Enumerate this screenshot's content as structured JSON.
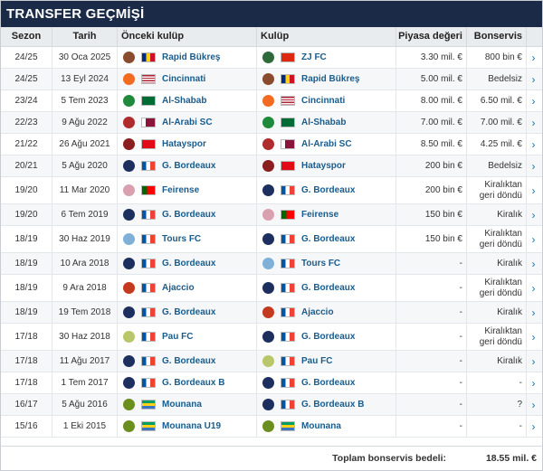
{
  "title": "TRANSFER GEÇMİŞİ",
  "columns": {
    "season": "Sezon",
    "date": "Tarih",
    "from": "Önceki kulüp",
    "to": "Kulüp",
    "value": "Piyasa değeri",
    "fee": "Bonservis"
  },
  "clubs": {
    "rapid": {
      "name": "Rapid Bükreş",
      "logo": "#8a4b2e",
      "flag": "RO"
    },
    "zj": {
      "name": "ZJ FC",
      "logo": "#2f6b3a",
      "flag": "CN"
    },
    "cinc": {
      "name": "Cincinnati",
      "logo": "#f26b21",
      "flag": "US"
    },
    "shabab": {
      "name": "Al-Shabab",
      "logo": "#1f8a3b",
      "flag": "SA"
    },
    "arabi": {
      "name": "Al-Arabi SC",
      "logo": "#b02b2b",
      "flag": "QA"
    },
    "hatay": {
      "name": "Hatayspor",
      "logo": "#8b1e1e",
      "flag": "TR"
    },
    "bord": {
      "name": "G. Bordeaux",
      "logo": "#1d2f5e",
      "flag": "FR"
    },
    "bordb": {
      "name": "G. Bordeaux B",
      "logo": "#1d2f5e",
      "flag": "FR"
    },
    "feir": {
      "name": "Feirense",
      "logo": "#d9a0b0",
      "flag": "PT"
    },
    "tours": {
      "name": "Tours FC",
      "logo": "#7fb0d8",
      "flag": "FR"
    },
    "ajac": {
      "name": "Ajaccio",
      "logo": "#c43a1f",
      "flag": "FR"
    },
    "pau": {
      "name": "Pau FC",
      "logo": "#b9c76a",
      "flag": "FR"
    },
    "moun": {
      "name": "Mounana",
      "logo": "#6b8f1e",
      "flag": "GA"
    },
    "mounu": {
      "name": "Mounana U19",
      "logo": "#6b8f1e",
      "flag": "GA"
    }
  },
  "rows": [
    {
      "season": "24/25",
      "date": "30 Oca 2025",
      "from": "rapid",
      "to": "zj",
      "value": "3.30 mil. €",
      "fee": "800 bin €",
      "h": 24
    },
    {
      "season": "24/25",
      "date": "13 Eyl 2024",
      "from": "cinc",
      "to": "rapid",
      "value": "5.00 mil. €",
      "fee": "Bedelsiz",
      "h": 24
    },
    {
      "season": "23/24",
      "date": "5 Tem 2023",
      "from": "shabab",
      "to": "cinc",
      "value": "8.00 mil. €",
      "fee": "6.50 mil. €",
      "h": 24
    },
    {
      "season": "22/23",
      "date": "9 Ağu 2022",
      "from": "arabi",
      "to": "shabab",
      "value": "7.00 mil. €",
      "fee": "7.00 mil. €",
      "h": 24
    },
    {
      "season": "21/22",
      "date": "26 Ağu 2021",
      "from": "hatay",
      "to": "arabi",
      "value": "8.50 mil. €",
      "fee": "4.25 mil. €",
      "h": 24
    },
    {
      "season": "20/21",
      "date": "5 Ağu 2020",
      "from": "bord",
      "to": "hatay",
      "value": "200 bin €",
      "fee": "Bedelsiz",
      "h": 24
    },
    {
      "season": "19/20",
      "date": "11 Mar 2020",
      "from": "feir",
      "to": "bord",
      "value": "200 bin €",
      "fee": "Kiralıktan geri döndü",
      "h": 30
    },
    {
      "season": "19/20",
      "date": "6 Tem 2019",
      "from": "bord",
      "to": "feir",
      "value": "150 bin €",
      "fee": "Kiralık",
      "h": 24
    },
    {
      "season": "18/19",
      "date": "30 Haz 2019",
      "from": "tours",
      "to": "bord",
      "value": "150 bin €",
      "fee": "Kiralıktan geri döndü",
      "h": 30
    },
    {
      "season": "18/19",
      "date": "10 Ara 2018",
      "from": "bord",
      "to": "tours",
      "value": "-",
      "fee": "Kiralık",
      "h": 24
    },
    {
      "season": "18/19",
      "date": "9 Ara 2018",
      "from": "ajac",
      "to": "bord",
      "value": "-",
      "fee": "Kiralıktan geri döndü",
      "h": 30
    },
    {
      "season": "18/19",
      "date": "19 Tem 2018",
      "from": "bord",
      "to": "ajac",
      "value": "-",
      "fee": "Kiralık",
      "h": 24
    },
    {
      "season": "17/18",
      "date": "30 Haz 2018",
      "from": "pau",
      "to": "bord",
      "value": "-",
      "fee": "Kiralıktan geri döndü",
      "h": 30
    },
    {
      "season": "17/18",
      "date": "11 Ağu 2017",
      "from": "bord",
      "to": "pau",
      "value": "-",
      "fee": "Kiralık",
      "h": 24
    },
    {
      "season": "17/18",
      "date": "1 Tem 2017",
      "from": "bordb",
      "to": "bord",
      "value": "-",
      "fee": "-",
      "h": 24
    },
    {
      "season": "16/17",
      "date": "5 Ağu 2016",
      "from": "moun",
      "to": "bordb",
      "value": "-",
      "fee": "?",
      "h": 24
    },
    {
      "season": "15/16",
      "date": "1 Eki 2015",
      "from": "mounu",
      "to": "moun",
      "value": "-",
      "fee": "-",
      "h": 24
    }
  ],
  "total": {
    "label": "Toplam bonservis bedeli:",
    "value": "18.55 mil. €"
  },
  "arrow_glyph": "›"
}
